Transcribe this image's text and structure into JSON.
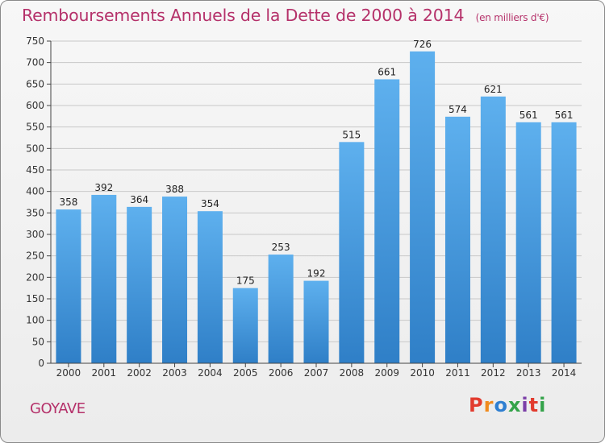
{
  "header": {
    "title": "Remboursements Annuels de la Dette de 2000 à 2014",
    "subtitle": "(en milliers d'€)"
  },
  "footer": {
    "place": "GOYAVE",
    "logo_text": "Proxiti"
  },
  "colors": {
    "title": "#b5316a",
    "bar_top": "#5eb0ee",
    "bar_bottom": "#2f7fc7",
    "grid": "#c8c8c8",
    "axis": "#444444"
  },
  "chart_data": {
    "type": "bar",
    "title": "Remboursements Annuels de la Dette de 2000 à 2014",
    "subtitle": "(en milliers d'€)",
    "categories": [
      "2000",
      "2001",
      "2002",
      "2003",
      "2004",
      "2005",
      "2006",
      "2007",
      "2008",
      "2009",
      "2010",
      "2011",
      "2012",
      "2013",
      "2014"
    ],
    "values": [
      358,
      392,
      364,
      388,
      354,
      175,
      253,
      192,
      515,
      661,
      726,
      574,
      621,
      561,
      561
    ],
    "ylim": [
      0,
      750
    ],
    "yticks": [
      0,
      50,
      100,
      150,
      200,
      250,
      300,
      350,
      400,
      450,
      500,
      550,
      600,
      650,
      700,
      750
    ],
    "grid": true,
    "data_labels": true,
    "xlabel": "",
    "ylabel": ""
  }
}
